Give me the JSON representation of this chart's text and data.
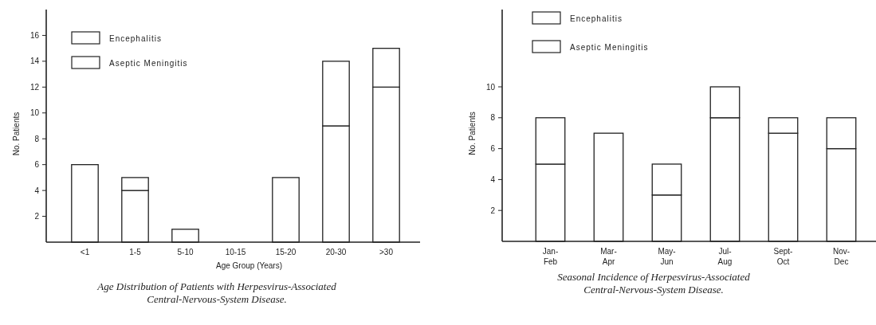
{
  "chart_data": [
    {
      "type": "bar",
      "stacked": true,
      "categories": [
        "<1",
        "1-5",
        "5-10",
        "10-15",
        "15-20",
        "20-30",
        ">30"
      ],
      "xlabel": "Age Group (Years)",
      "ylabel": "No. Patients",
      "ylim": [
        0,
        18
      ],
      "yticks": [
        2,
        4,
        6,
        8,
        10,
        12,
        14,
        16
      ],
      "legend": "top left",
      "grid": false,
      "series": [
        {
          "name": "Encephalitis",
          "color": "#ffffff",
          "values": [
            6,
            4,
            1,
            0,
            5,
            9,
            12
          ]
        },
        {
          "name": "Aseptic Meningitis",
          "color": "#ffffff",
          "values": [
            0,
            1,
            0,
            0,
            0,
            5,
            3
          ]
        }
      ],
      "annotations": [
        "Age Distribution of Patients with Herpesvirus-Associated Central-Nervous-System Disease."
      ]
    },
    {
      "type": "bar",
      "stacked": true,
      "categories": [
        "Jan-\nFeb",
        "Mar-\nApr",
        "May-\nJun",
        "Jul-\nAug",
        "Sept-\nOct",
        "Nov-\nDec"
      ],
      "ylabel": "No. Patients",
      "ylim": [
        0,
        15
      ],
      "yticks": [
        2,
        4,
        6,
        8,
        10
      ],
      "legend": "top left",
      "grid": false,
      "series": [
        {
          "name": "Encephalitis",
          "color": "#ffffff",
          "values": [
            5,
            7,
            3,
            8,
            7,
            6
          ]
        },
        {
          "name": "Aseptic Meningitis",
          "color": "#ffffff",
          "values": [
            3,
            0,
            2,
            2,
            1,
            2
          ]
        }
      ],
      "annotations": [
        "Seasonal Incidence of Herpesvirus-Associated Central-Nervous-System Disease."
      ]
    }
  ]
}
